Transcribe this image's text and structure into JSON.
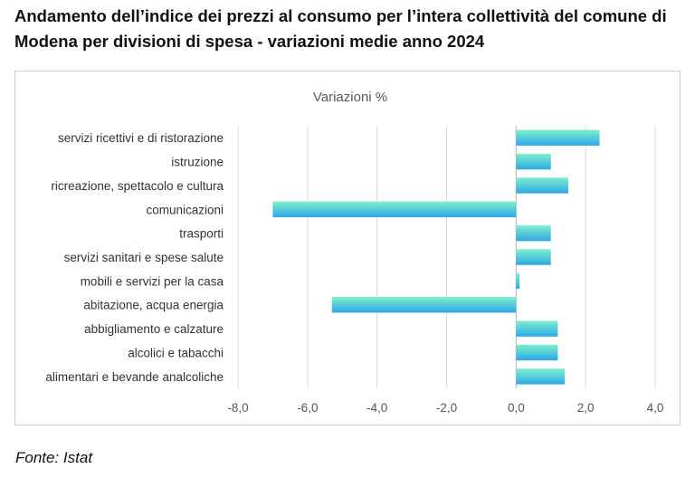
{
  "header": {
    "title": "Andamento dell’indice dei prezzi al consumo per l’intera collettività del comune di Modena per divisioni di spesa - variazioni medie anno 2024"
  },
  "footer": {
    "source": "Fonte: Istat"
  },
  "colors": {
    "bar_top": "#7ff0cc",
    "bar_bottom": "#2ea8e6",
    "grid": "#d9d9d9",
    "zero_line": "#bfbfbf"
  },
  "chart_data": {
    "type": "bar",
    "orientation": "horizontal",
    "title": "Variazioni %",
    "xlim": [
      -8.0,
      4.0
    ],
    "x_ticks": [
      "-8,0",
      "-6,0",
      "-4,0",
      "-2,0",
      "0,0",
      "2,0",
      "4,0"
    ],
    "grid": true,
    "categories": [
      "servizi ricettivi e di ristorazione",
      "istruzione",
      "ricreazione, spettacolo e cultura",
      "comunicazioni",
      "trasporti",
      "servizi sanitari e spese salute",
      "mobili e servizi per la casa",
      "abitazione, acqua energia",
      "abbigliamento e calzature",
      "alcolici e tabacchi",
      "alimentari e bevande analcoliche"
    ],
    "values": [
      2.4,
      1.0,
      1.5,
      -7.0,
      1.0,
      1.0,
      0.1,
      -5.3,
      1.2,
      1.2,
      1.4
    ]
  }
}
